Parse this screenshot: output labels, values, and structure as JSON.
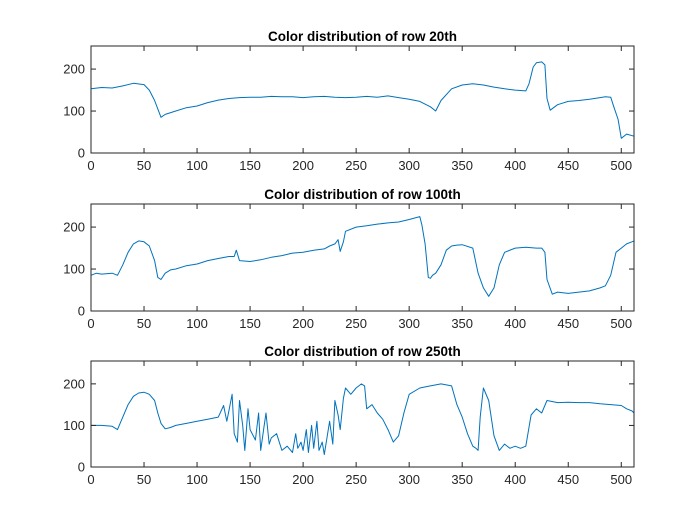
{
  "figure": {
    "background": "#ffffff",
    "line_color": "#0072BD",
    "axis_color": "#262626"
  },
  "chart_data": [
    {
      "type": "line",
      "title": "Color distribution of row 20th",
      "xlabel": "",
      "ylabel": "",
      "xlim": [
        0,
        512
      ],
      "ylim": [
        0,
        255
      ],
      "xticks": [
        0,
        50,
        100,
        150,
        200,
        250,
        300,
        350,
        400,
        450,
        500
      ],
      "yticks": [
        0,
        100,
        200
      ],
      "grid": false,
      "series": [
        {
          "x": [
            0,
            10,
            20,
            30,
            40,
            50,
            55,
            60,
            63,
            66,
            70,
            80,
            90,
            100,
            110,
            120,
            130,
            140,
            150,
            160,
            170,
            180,
            190,
            200,
            210,
            220,
            230,
            240,
            250,
            260,
            270,
            280,
            290,
            300,
            310,
            320,
            325,
            330,
            340,
            350,
            360,
            370,
            380,
            390,
            400,
            410,
            413,
            417,
            420,
            425,
            428,
            430,
            433,
            440,
            450,
            460,
            470,
            480,
            485,
            490,
            493,
            497,
            500,
            505,
            512
          ],
          "y": [
            153,
            156,
            155,
            160,
            166,
            163,
            150,
            125,
            105,
            85,
            92,
            100,
            108,
            112,
            120,
            126,
            130,
            132,
            133,
            133,
            135,
            134,
            134,
            132,
            134,
            135,
            133,
            132,
            133,
            135,
            133,
            136,
            132,
            128,
            123,
            110,
            100,
            125,
            153,
            162,
            165,
            162,
            157,
            153,
            150,
            148,
            165,
            205,
            215,
            217,
            210,
            130,
            102,
            115,
            123,
            125,
            128,
            132,
            134,
            133,
            110,
            80,
            35,
            45,
            40
          ]
        }
      ]
    },
    {
      "type": "line",
      "title": "Color distribution of row 100th",
      "xlabel": "",
      "ylabel": "",
      "xlim": [
        0,
        512
      ],
      "ylim": [
        0,
        255
      ],
      "xticks": [
        0,
        50,
        100,
        150,
        200,
        250,
        300,
        350,
        400,
        450,
        500
      ],
      "yticks": [
        0,
        100,
        200
      ],
      "grid": false,
      "series": [
        {
          "x": [
            0,
            5,
            10,
            20,
            25,
            30,
            35,
            40,
            45,
            50,
            55,
            60,
            63,
            66,
            70,
            75,
            80,
            90,
            100,
            110,
            120,
            130,
            135,
            137,
            140,
            150,
            160,
            170,
            180,
            190,
            200,
            210,
            220,
            225,
            230,
            233,
            235,
            238,
            240,
            250,
            260,
            270,
            280,
            290,
            300,
            310,
            312,
            315,
            318,
            320,
            322,
            325,
            330,
            335,
            340,
            345,
            350,
            360,
            365,
            370,
            375,
            380,
            385,
            390,
            400,
            410,
            420,
            425,
            428,
            430,
            435,
            440,
            450,
            460,
            470,
            480,
            485,
            490,
            495,
            500,
            505,
            510,
            512
          ],
          "y": [
            85,
            90,
            88,
            90,
            85,
            110,
            140,
            160,
            167,
            165,
            155,
            120,
            80,
            75,
            90,
            98,
            100,
            108,
            112,
            120,
            125,
            130,
            130,
            145,
            120,
            118,
            122,
            128,
            132,
            138,
            140,
            145,
            148,
            155,
            160,
            170,
            142,
            165,
            190,
            200,
            203,
            207,
            210,
            212,
            218,
            225,
            205,
            160,
            80,
            78,
            85,
            90,
            110,
            145,
            155,
            157,
            158,
            150,
            90,
            55,
            35,
            55,
            110,
            140,
            150,
            152,
            150,
            150,
            140,
            75,
            40,
            45,
            42,
            45,
            48,
            55,
            60,
            85,
            140,
            150,
            160,
            165,
            167
          ]
        }
      ]
    },
    {
      "type": "line",
      "title": "Color distribution of row 250th",
      "xlabel": "",
      "ylabel": "",
      "xlim": [
        0,
        512
      ],
      "ylim": [
        0,
        255
      ],
      "xticks": [
        0,
        50,
        100,
        150,
        200,
        250,
        300,
        350,
        400,
        450,
        500
      ],
      "yticks": [
        0,
        100,
        200
      ],
      "grid": false,
      "series": [
        {
          "x": [
            0,
            10,
            20,
            25,
            30,
            35,
            40,
            45,
            50,
            55,
            60,
            63,
            66,
            70,
            75,
            80,
            90,
            100,
            110,
            120,
            125,
            128,
            130,
            133,
            135,
            138,
            140,
            143,
            145,
            148,
            150,
            155,
            158,
            160,
            163,
            165,
            168,
            170,
            175,
            180,
            185,
            190,
            193,
            195,
            198,
            200,
            203,
            205,
            208,
            210,
            213,
            215,
            218,
            220,
            225,
            228,
            230,
            233,
            235,
            238,
            240,
            245,
            250,
            255,
            258,
            260,
            265,
            270,
            275,
            280,
            285,
            290,
            295,
            300,
            310,
            320,
            330,
            340,
            345,
            350,
            355,
            360,
            363,
            365,
            367,
            370,
            375,
            380,
            385,
            390,
            395,
            400,
            405,
            410,
            415,
            420,
            425,
            430,
            440,
            450,
            460,
            470,
            480,
            490,
            500,
            505,
            510,
            512
          ],
          "y": [
            100,
            100,
            98,
            90,
            120,
            150,
            170,
            178,
            180,
            175,
            160,
            130,
            105,
            92,
            95,
            100,
            105,
            110,
            115,
            120,
            148,
            110,
            135,
            175,
            80,
            60,
            160,
            100,
            40,
            140,
            90,
            65,
            130,
            40,
            95,
            130,
            55,
            70,
            80,
            40,
            50,
            35,
            80,
            45,
            60,
            40,
            90,
            35,
            100,
            45,
            110,
            40,
            60,
            30,
            110,
            55,
            160,
            125,
            90,
            165,
            190,
            175,
            190,
            200,
            195,
            140,
            150,
            130,
            115,
            90,
            60,
            75,
            130,
            175,
            190,
            195,
            200,
            195,
            150,
            120,
            80,
            50,
            45,
            40,
            120,
            190,
            160,
            75,
            40,
            55,
            45,
            50,
            45,
            50,
            125,
            140,
            130,
            160,
            155,
            156,
            155,
            155,
            152,
            150,
            148,
            140,
            135,
            130
          ]
        }
      ]
    }
  ]
}
